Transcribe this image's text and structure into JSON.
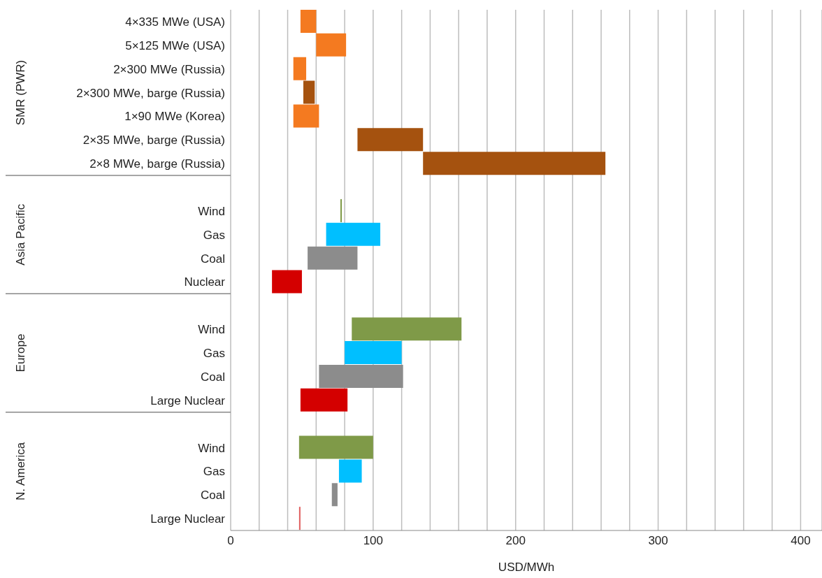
{
  "chart_data": {
    "type": "bar",
    "orientation": "horizontal",
    "xlabel": "USD/MWh",
    "categories": [
      "4×335 MWe (USA)",
      "5×125 MWe (USA)",
      "2×300 MWe (Russia)",
      "2×300 MWe, barge (Russia)",
      "1×90 MWe (Korea)",
      "2×35 MWe, barge (Russia)",
      "2×8 MWe, barge (Russia)",
      null,
      "Wind",
      "Gas",
      "Coal ",
      "Nuclear",
      null,
      "Wind",
      "Gas",
      "Coal ",
      "Large Nuclear",
      null,
      "Wind",
      "Gas",
      "Coal ",
      "Large Nuclear"
    ],
    "base": [
      49,
      60,
      44,
      51,
      44,
      89,
      135,
      null,
      77,
      67,
      54,
      29,
      null,
      85,
      80,
      62,
      49,
      null,
      48,
      76,
      71,
      48
    ],
    "values": [
      11,
      21,
      9,
      8,
      18,
      46,
      128,
      null,
      1,
      38,
      35,
      21,
      null,
      77,
      40,
      59,
      33,
      null,
      52,
      16,
      4,
      1
    ],
    "colors": [
      "#f47a20",
      "#f47a20",
      "#f47a20",
      "#a5520f",
      "#f47a20",
      "#a5520f",
      "#a5520f",
      null,
      "#7f9a48",
      "#00bfff",
      "#8c8c8c",
      "#d40000",
      null,
      "#7f9a48",
      "#00bfff",
      "#8c8c8c",
      "#d40000",
      null,
      "#7f9a48",
      "#00bfff",
      "#8c8c8c",
      "#e06060"
    ],
    "xlim": [
      0,
      415
    ],
    "xticks": [
      0,
      {
        "value": 20,
        "label": null
      },
      {
        "value": 40,
        "label": null
      },
      {
        "value": 60,
        "label": null
      },
      {
        "value": 80,
        "label": null
      },
      100,
      {
        "value": 120,
        "label": null
      },
      {
        "value": 140,
        "label": null
      },
      {
        "value": 160,
        "label": null
      },
      {
        "value": 180,
        "label": null
      },
      200,
      {
        "value": 220,
        "label": null
      },
      {
        "value": 240,
        "label": null
      },
      {
        "value": 260,
        "label": null
      },
      {
        "value": 280,
        "label": null
      },
      300,
      {
        "value": 320,
        "label": null
      },
      {
        "value": 340,
        "label": null
      },
      {
        "value": 360,
        "label": null
      },
      {
        "value": 380,
        "label": null
      },
      400
    ],
    "grid": "x",
    "annotations": [
      "SMR (PWR)",
      "Asia Pacific",
      "Europe",
      "N. America"
    ]
  }
}
